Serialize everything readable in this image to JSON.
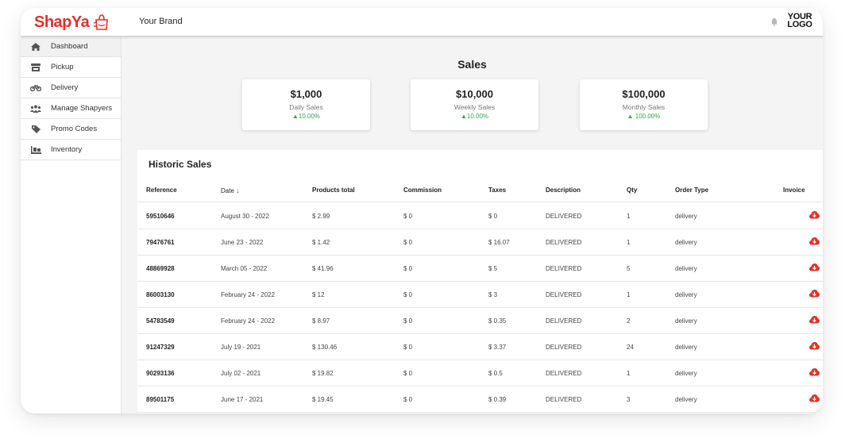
{
  "header": {
    "app_logo": "ShapYa",
    "brand": "Your Brand",
    "your_logo_line1": "YOUR",
    "your_logo_line2": "LOGO",
    "brand_color": "#e0312d"
  },
  "sidebar": {
    "items": [
      {
        "label": "Dashboard",
        "icon": "home-icon",
        "active": true
      },
      {
        "label": "Pickup",
        "icon": "store-icon"
      },
      {
        "label": "Delivery",
        "icon": "motorcycle-icon"
      },
      {
        "label": "Manage Shapyers",
        "icon": "users-icon"
      },
      {
        "label": "Promo Codes",
        "icon": "tag-icon"
      },
      {
        "label": "Inventory",
        "icon": "inventory-icon"
      }
    ]
  },
  "sales": {
    "title": "Sales",
    "cards": [
      {
        "value": "$1,000",
        "label": "Daily Sales",
        "change": "10.00%"
      },
      {
        "value": "$10,000",
        "label": "Weekly Sales",
        "change": "10.00%"
      },
      {
        "value": "$100,000",
        "label": "Monthly Sales",
        "change": " 100.00%"
      }
    ],
    "positive_color": "#2fa84f"
  },
  "historic": {
    "title": "Historic Sales",
    "columns": [
      "Reference",
      "Date",
      "Products total",
      "Commission",
      "Taxes",
      "Description",
      "Qty",
      "Order Type",
      "Invoice"
    ],
    "rows": [
      {
        "ref": "59510646",
        "date": "August 30 - 2022",
        "products": "$ 2.99",
        "commission": "$ 0",
        "taxes": "$ 0",
        "desc": "DELIVERED",
        "qty": "1",
        "type": "delivery"
      },
      {
        "ref": "79476761",
        "date": "June 23 - 2022",
        "products": "$ 1.42",
        "commission": "$ 0",
        "taxes": "$ 16.07",
        "desc": "DELIVERED",
        "qty": "1",
        "type": "delivery"
      },
      {
        "ref": "48869928",
        "date": "March 05 - 2022",
        "products": "$ 41.96",
        "commission": "$ 0",
        "taxes": "$ 5",
        "desc": "DELIVERED",
        "qty": "5",
        "type": "delivery"
      },
      {
        "ref": "86003130",
        "date": "February 24 - 2022",
        "products": "$ 12",
        "commission": "$ 0",
        "taxes": "$ 3",
        "desc": "DELIVERED",
        "qty": "1",
        "type": "delivery"
      },
      {
        "ref": "54783549",
        "date": "February 24 - 2022",
        "products": "$ 8.97",
        "commission": "$ 0",
        "taxes": "$ 0.35",
        "desc": "DELIVERED",
        "qty": "2",
        "type": "delivery"
      },
      {
        "ref": "91247329",
        "date": "July 19 - 2021",
        "products": "$ 130.46",
        "commission": "$ 0",
        "taxes": "$ 3.37",
        "desc": "DELIVERED",
        "qty": "24",
        "type": "delivery"
      },
      {
        "ref": "90293136",
        "date": "July 02 - 2021",
        "products": "$ 19.82",
        "commission": "$ 0",
        "taxes": "$ 0.5",
        "desc": "DELIVERED",
        "qty": "1",
        "type": "delivery"
      },
      {
        "ref": "89501175",
        "date": "June 17 - 2021",
        "products": "$ 19.45",
        "commission": "$ 0",
        "taxes": "$ 0.39",
        "desc": "DELIVERED",
        "qty": "3",
        "type": "delivery"
      }
    ],
    "invoice_icon": "cloud-download-icon",
    "invoice_color": "#e0312d"
  }
}
